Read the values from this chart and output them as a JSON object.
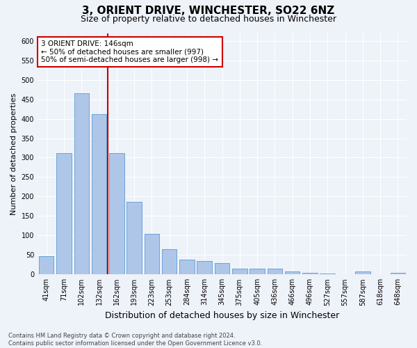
{
  "title1": "3, ORIENT DRIVE, WINCHESTER, SO22 6NZ",
  "title2": "Size of property relative to detached houses in Winchester",
  "xlabel": "Distribution of detached houses by size in Winchester",
  "ylabel": "Number of detached properties",
  "categories": [
    "41sqm",
    "71sqm",
    "102sqm",
    "132sqm",
    "162sqm",
    "193sqm",
    "223sqm",
    "253sqm",
    "284sqm",
    "314sqm",
    "345sqm",
    "375sqm",
    "405sqm",
    "436sqm",
    "466sqm",
    "496sqm",
    "527sqm",
    "557sqm",
    "587sqm",
    "618sqm",
    "648sqm"
  ],
  "values": [
    47,
    312,
    466,
    412,
    312,
    187,
    104,
    65,
    38,
    34,
    30,
    14,
    14,
    15,
    7,
    4,
    2,
    0,
    7,
    1,
    5
  ],
  "bar_color": "#aec6e8",
  "bar_edge_color": "#5b9bd5",
  "vline_color": "#cc0000",
  "annotation_text": "3 ORIENT DRIVE: 146sqm\n← 50% of detached houses are smaller (997)\n50% of semi-detached houses are larger (998) →",
  "annotation_box_color": "#ffffff",
  "annotation_box_edge": "#cc0000",
  "ylim": [
    0,
    620
  ],
  "yticks": [
    0,
    50,
    100,
    150,
    200,
    250,
    300,
    350,
    400,
    450,
    500,
    550,
    600
  ],
  "footnote": "Contains HM Land Registry data © Crown copyright and database right 2024.\nContains public sector information licensed under the Open Government Licence v3.0.",
  "bg_color": "#eef2f9",
  "grid_color": "#ffffff",
  "title1_fontsize": 11,
  "title2_fontsize": 9,
  "xlabel_fontsize": 9,
  "ylabel_fontsize": 8,
  "tick_fontsize": 7,
  "annot_fontsize": 7.5,
  "footnote_fontsize": 6
}
